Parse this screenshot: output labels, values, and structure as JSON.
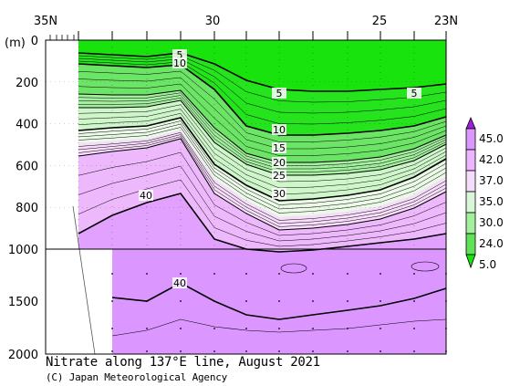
{
  "chart_data": {
    "type": "contour-section",
    "title": "Nitrate along 137°E line, August 2021",
    "credit": "(C) Japan Meteorological Agency",
    "ylabel": "(m)",
    "x_tick_labels": [
      "35N",
      "30",
      "25",
      "23N"
    ],
    "y_tick_labels_upper": [
      "0",
      "200",
      "400",
      "600",
      "800",
      "1000"
    ],
    "y_tick_labels_lower": [
      "1500",
      "2000"
    ],
    "colorbar": {
      "labels": [
        "45.0",
        "42.0",
        "37.0",
        "35.0",
        "30.0",
        "24.0",
        "5.0"
      ],
      "colors": [
        "#9b22d6",
        "#dc96ff",
        "#ebb6ff",
        "#f6dcfb",
        "#d9f7d7",
        "#a3f09c",
        "#5fe257",
        "#18e30d"
      ]
    },
    "contour_labels": [
      "5",
      "10",
      "5",
      "5",
      "10",
      "15",
      "20",
      "25",
      "30",
      "40",
      "40"
    ],
    "colors": {
      "band_5_10": "#2ee227",
      "band_10_20": "#6ce566",
      "band_20_25": "#a4ef9f",
      "band_25_30": "#cff6cb",
      "band_30_35": "#eafae7",
      "band_35_37": "#f7dcfb",
      "band_37_40": "#edb8fc",
      "band_40_42": "#e2a1ff",
      "deep": "#dc96ff",
      "surface": "#18e30d",
      "land": "#ffffff"
    }
  }
}
